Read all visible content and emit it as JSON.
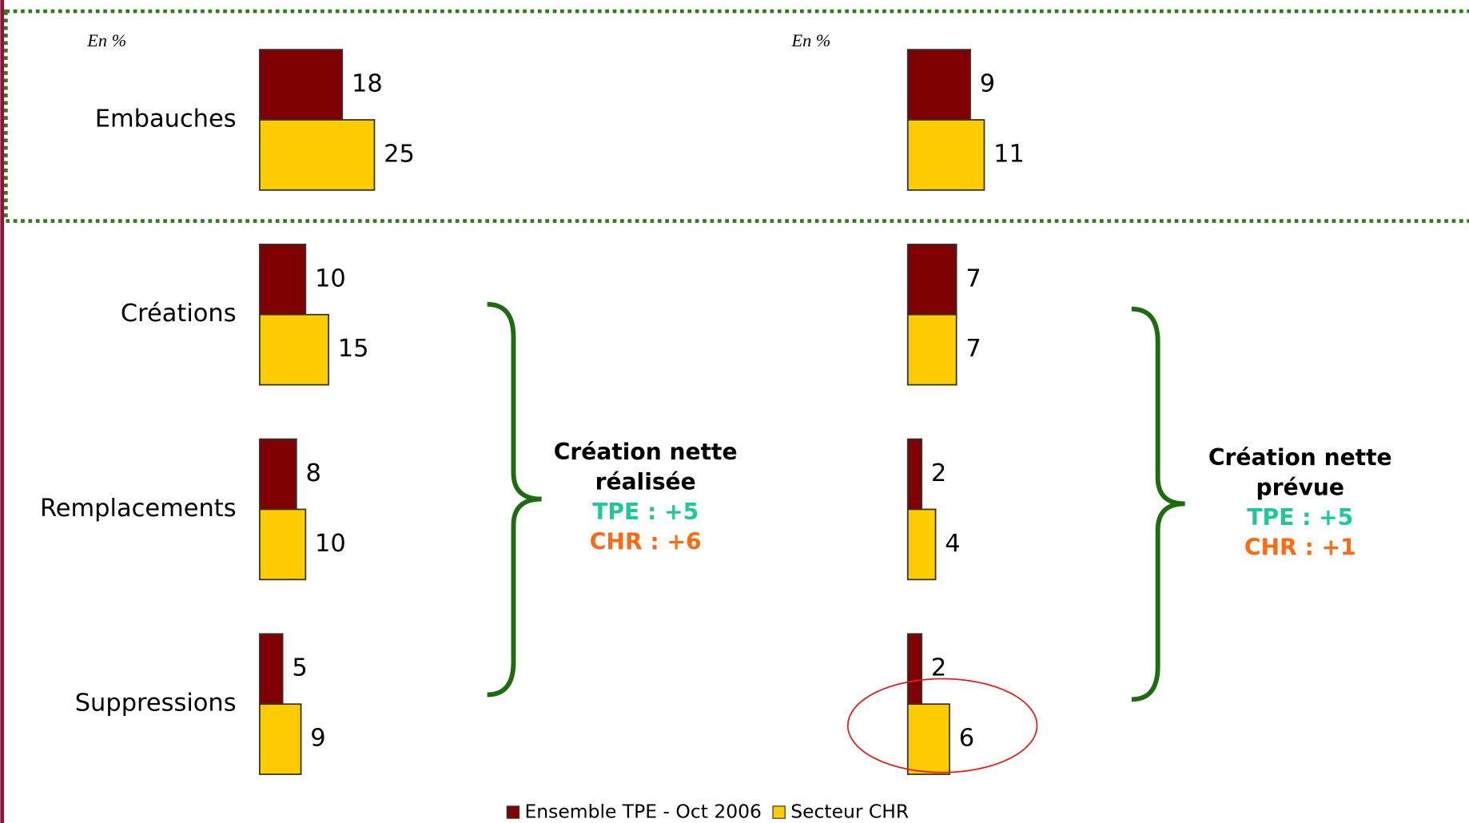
{
  "chart_data": [
    {
      "type": "bar",
      "orientation": "horizontal",
      "annotation_unit": "En %",
      "categories": [
        "Embauches",
        "Créations",
        "Remplacements",
        "Suppressions"
      ],
      "series": [
        {
          "name": "Ensemble TPE - Oct 2006",
          "color": "#7f0000",
          "values": [
            18,
            10,
            8,
            5
          ]
        },
        {
          "name": "Secteur CHR",
          "color": "#ffcc00",
          "values": [
            25,
            15,
            10,
            9
          ]
        }
      ],
      "xlim": [
        0,
        50
      ],
      "note": {
        "lines": [
          "Création nette",
          "réalisée"
        ],
        "tpe": "TPE : +5",
        "chr": "CHR : +6"
      }
    },
    {
      "type": "bar",
      "orientation": "horizontal",
      "annotation_unit": "En %",
      "series": [
        {
          "color": "#7f0000",
          "values": [
            9,
            7,
            2,
            2
          ]
        },
        {
          "color": "#ffcc00",
          "values": [
            11,
            7,
            4,
            6
          ]
        }
      ],
      "xlim": [
        0,
        33
      ],
      "note": {
        "lines": [
          "Création nette",
          "prévue"
        ],
        "tpe": "TPE : +5",
        "chr": "CHR : +1"
      }
    }
  ]
}
